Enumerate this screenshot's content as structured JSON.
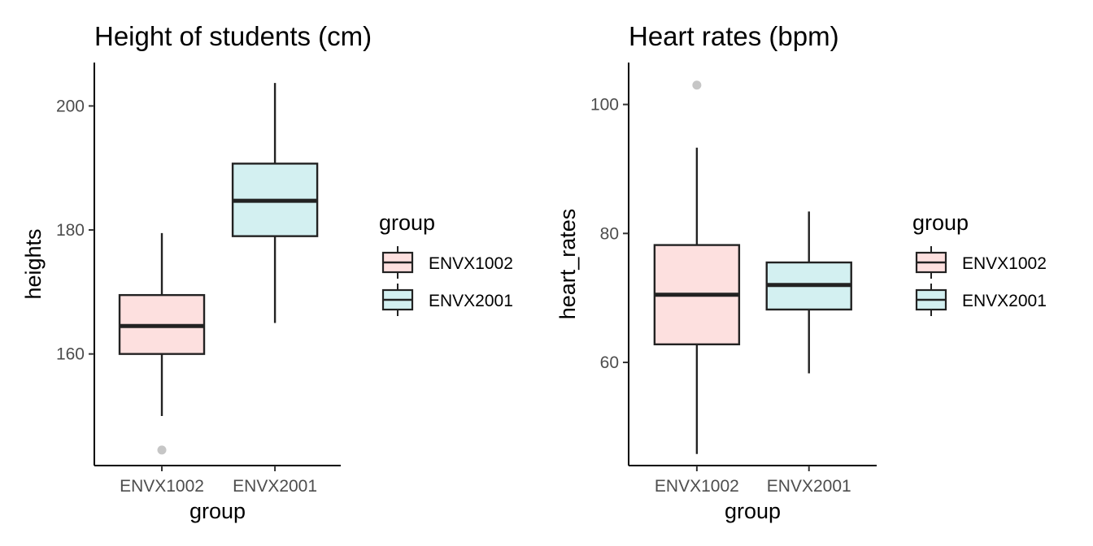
{
  "chart_data": [
    {
      "type": "box",
      "title": "Height of students (cm)",
      "xlabel": "group",
      "ylabel": "heights",
      "categories": [
        "ENVX1002",
        "ENVX2001"
      ],
      "yticks": [
        160,
        180,
        200
      ],
      "ylim": [
        142,
        207
      ],
      "boxes": [
        {
          "group": "ENVX1002",
          "whisker_low": 150,
          "q1": 160,
          "median": 164.5,
          "q3": 169.5,
          "whisker_high": 179.5,
          "outliers": [
            144.5
          ]
        },
        {
          "group": "ENVX2001",
          "whisker_low": 165,
          "q1": 179,
          "median": 184.7,
          "q3": 190.7,
          "whisker_high": 203.7,
          "outliers": []
        }
      ],
      "legend": {
        "title": "group",
        "entries": [
          "ENVX1002",
          "ENVX2001"
        ],
        "position": "right"
      }
    },
    {
      "type": "box",
      "title": "Heart rates (bpm)",
      "xlabel": "group",
      "ylabel": "heart_rates",
      "categories": [
        "ENVX1002",
        "ENVX2001"
      ],
      "yticks": [
        60,
        80,
        100
      ],
      "ylim": [
        44,
        106.5
      ],
      "boxes": [
        {
          "group": "ENVX1002",
          "whisker_low": 45.8,
          "q1": 62.8,
          "median": 70.5,
          "q3": 78.2,
          "whisker_high": 93.3,
          "outliers": [
            103
          ]
        },
        {
          "group": "ENVX2001",
          "whisker_low": 58.3,
          "q1": 68.2,
          "median": 72,
          "q3": 75.5,
          "whisker_high": 83.4,
          "outliers": []
        }
      ],
      "legend": {
        "title": "group",
        "entries": [
          "ENVX1002",
          "ENVX2001"
        ],
        "position": "right"
      }
    }
  ],
  "colors": {
    "ENVX1002": "#fde0df",
    "ENVX2001": "#d3f0f1",
    "box_stroke": "#222222",
    "outlier": "#b3b3b3",
    "axis": "#000000",
    "tick_text": "#4d4d4d"
  }
}
